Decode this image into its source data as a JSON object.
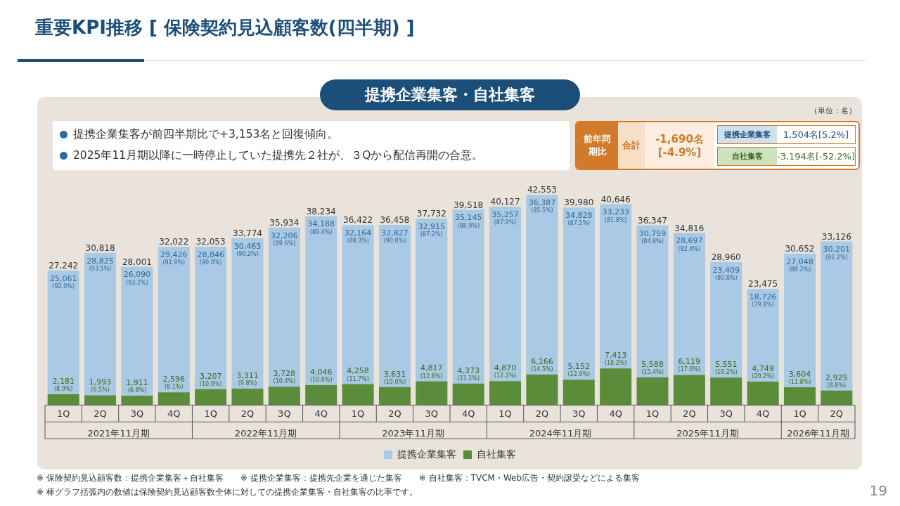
{
  "chart_data": {
    "type": "bar",
    "title": "重要KPI推移 [ 保険契約見込顧客数(四半期) ]",
    "subtitle": "提携企業集客・自社集客",
    "categories": [
      "1Q",
      "2Q",
      "3Q",
      "4Q",
      "1Q",
      "2Q",
      "3Q",
      "4Q",
      "1Q",
      "2Q",
      "3Q",
      "4Q",
      "1Q",
      "2Q",
      "3Q",
      "4Q",
      "1Q",
      "2Q",
      "3Q",
      "4Q",
      "1Q",
      "2Q"
    ],
    "stacked": true,
    "data_labels": true,
    "tick_labels": "x",
    "legend": "bottom",
    "series": [
      {
        "name": "自社集客",
        "color": "#5b8c3a",
        "values": [
          2181,
          1993,
          1911,
          2596,
          3207,
          3311,
          3728,
          4046,
          4258,
          3631,
          4817,
          4373,
          4870,
          6166,
          5152,
          7413,
          5588,
          6119,
          5551,
          4749,
          3604,
          2925
        ],
        "value_labels": [
          "2,181 (8.0%)",
          "1,993 (6.5%)",
          "1,911 (6.8%)",
          "2,596 (8.1%)",
          "3,207 (10.0%)",
          "3,311 (9.8%)",
          "3,728 (10.4%)",
          "4,046 (10.6%)",
          "4,258 (11.7%)",
          "3,631 (10.0%)",
          "4,817 (12.8%)",
          "4,373 (11.1%)",
          "4,870 (12.1%)",
          "6,166 (14.5%)",
          "5,152 (12.9%)",
          "7,413 (18.2%)",
          "5,588 (15.4%)",
          "6,119 (17.6%)",
          "5,551 (19.2%)",
          "4,749 (20.2%)",
          "3,604 (11.8%)",
          "2,925 (8.8%)"
        ]
      },
      {
        "name": "提携企業集客",
        "color": "#a9c9e4",
        "values": [
          25061,
          28825,
          26090,
          29426,
          28846,
          30463,
          32206,
          34188,
          32164,
          32827,
          32915,
          35145,
          35257,
          36387,
          34828,
          33233,
          30759,
          28697,
          23409,
          18726,
          27048,
          30201
        ],
        "value_labels": [
          "25,061 (92.0%)",
          "28,825 (93.5%)",
          "26,090 (93.2%)",
          "29,426 (91.9%)",
          "28,846 (90.0%)",
          "30,463 (90.2%)",
          "32,206 (89.6%)",
          "34,188 (89.4%)",
          "32,164 (88.3%)",
          "32,827 (90.0%)",
          "32,915 (87.2%)",
          "35,145 (88.9%)",
          "35,257 (87.9%)",
          "36,387 (85.5%)",
          "34,828 (87.1%)",
          "33,233 (81.8%)",
          "30,759 (84.6%)",
          "28,697 (82.4%)",
          "23,409 (80.8%)",
          "18,726 (79.8%)",
          "27,048 (88.2%)",
          "30,201 (91.2%)"
        ]
      }
    ],
    "totals": [
      "27,242",
      "30,818",
      "28,001",
      "32,022",
      "32,053",
      "33,774",
      "35,934",
      "38,234",
      "36,422",
      "36,458",
      "37,732",
      "39,518",
      "40,127",
      "42,553",
      "39,980",
      "40,646",
      "36,347",
      "34,816",
      "28,960",
      "23,475",
      "30,652",
      "33,126"
    ],
    "annotations": [
      "（単位：名）",
      "提携企業集客が前四半期比で+3,153名と回復傾向。",
      "2025年11月期以降に一時停止していた提携先２社が、３Qから配信再開の合意。",
      "前年同期比",
      "合計",
      "-1,690名 [-4.9%]",
      "提携企業集客",
      "1,504名[5.2%]",
      "自社集客",
      "-3,194名[-52.2%]",
      "2021年11月期",
      "2022年11月期",
      "2023年11月期",
      "2024年11月期",
      "2025年11月期",
      "2026年11月期",
      "※ 保険契約見込顧客数：提携企業集客＋自社集客　　※ 提携企業集客：提携先企業を通じた集客　　※ 自社集客：TVCM・Web広告・契約譲受などによる集客",
      "※ 棒グラフ括弧内の数値は保険契約見込顧客数全体に対しての提携企業集客・自社集客の比率です。",
      "19"
    ]
  }
}
